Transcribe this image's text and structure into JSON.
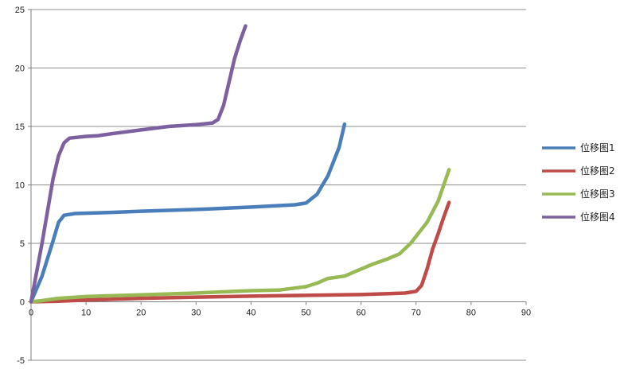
{
  "chart_data": {
    "type": "line",
    "title": "",
    "xlabel": "",
    "ylabel": "",
    "xlim": [
      0,
      90
    ],
    "ylim": [
      -5,
      25
    ],
    "x_ticks": [
      0,
      10,
      20,
      30,
      40,
      50,
      60,
      70,
      80,
      90
    ],
    "y_ticks": [
      -5,
      0,
      5,
      10,
      15,
      20,
      25
    ],
    "x_tick_labels": [
      "0",
      "10",
      "20",
      "30",
      "40",
      "50",
      "60",
      "70",
      "80",
      "90"
    ],
    "y_tick_labels": [
      "-5",
      "0",
      "5",
      "10",
      "15",
      "20",
      "25"
    ],
    "grid": "horizontal",
    "legend_position": "right",
    "series": [
      {
        "name": "位移图1",
        "color": "#4a7ebb",
        "points": [
          [
            0,
            0
          ],
          [
            2,
            2.2
          ],
          [
            4,
            5.2
          ],
          [
            5,
            6.8
          ],
          [
            6,
            7.4
          ],
          [
            8,
            7.55
          ],
          [
            15,
            7.65
          ],
          [
            20,
            7.75
          ],
          [
            30,
            7.9
          ],
          [
            40,
            8.1
          ],
          [
            48,
            8.3
          ],
          [
            50,
            8.45
          ],
          [
            52,
            9.2
          ],
          [
            54,
            10.8
          ],
          [
            56,
            13.2
          ],
          [
            57,
            15.2
          ]
        ]
      },
      {
        "name": "位移图2",
        "color": "#be4b48",
        "points": [
          [
            0,
            0
          ],
          [
            5,
            0.05
          ],
          [
            10,
            0.15
          ],
          [
            20,
            0.3
          ],
          [
            30,
            0.4
          ],
          [
            40,
            0.48
          ],
          [
            50,
            0.55
          ],
          [
            60,
            0.62
          ],
          [
            65,
            0.7
          ],
          [
            68,
            0.75
          ],
          [
            70,
            0.9
          ],
          [
            71,
            1.4
          ],
          [
            72,
            2.8
          ],
          [
            73,
            4.5
          ],
          [
            74,
            5.8
          ],
          [
            75,
            7.2
          ],
          [
            76,
            8.5
          ]
        ]
      },
      {
        "name": "位移图3",
        "color": "#98b954",
        "points": [
          [
            0,
            0
          ],
          [
            2,
            0.1
          ],
          [
            5,
            0.3
          ],
          [
            10,
            0.45
          ],
          [
            20,
            0.6
          ],
          [
            30,
            0.75
          ],
          [
            40,
            0.95
          ],
          [
            45,
            1.0
          ],
          [
            50,
            1.3
          ],
          [
            52,
            1.6
          ],
          [
            54,
            2.0
          ],
          [
            57,
            2.2
          ],
          [
            60,
            2.8
          ],
          [
            62,
            3.2
          ],
          [
            65,
            3.7
          ],
          [
            67,
            4.1
          ],
          [
            69,
            5.0
          ],
          [
            72,
            6.8
          ],
          [
            74,
            8.6
          ],
          [
            76,
            11.3
          ]
        ]
      },
      {
        "name": "位移图4",
        "color": "#7d60a0",
        "points": [
          [
            0,
            0
          ],
          [
            2,
            5.0
          ],
          [
            4,
            10.5
          ],
          [
            5,
            12.5
          ],
          [
            6,
            13.6
          ],
          [
            7,
            14.0
          ],
          [
            10,
            14.15
          ],
          [
            12,
            14.2
          ],
          [
            15,
            14.4
          ],
          [
            20,
            14.7
          ],
          [
            25,
            15.0
          ],
          [
            30,
            15.15
          ],
          [
            33,
            15.3
          ],
          [
            34,
            15.6
          ],
          [
            35,
            16.8
          ],
          [
            36,
            18.8
          ],
          [
            37,
            20.8
          ],
          [
            38,
            22.3
          ],
          [
            39,
            23.6
          ]
        ]
      }
    ]
  }
}
